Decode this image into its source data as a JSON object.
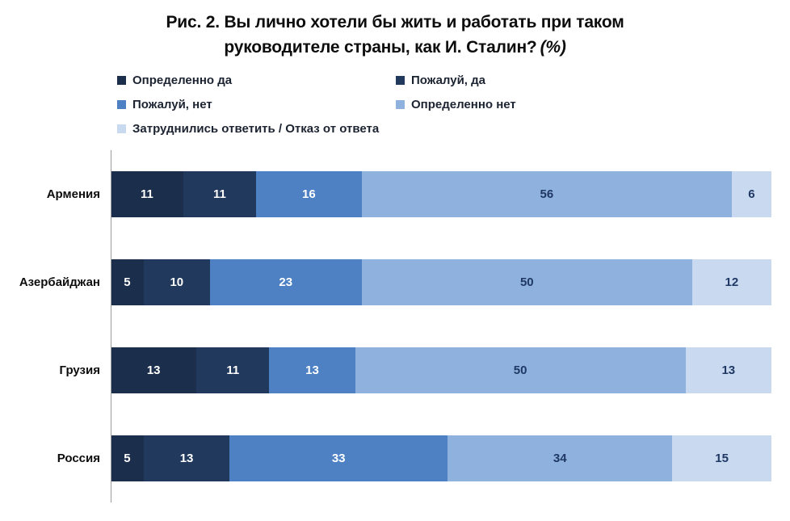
{
  "title": {
    "line1": "Рис. 2. Вы лично хотели бы жить и работать при таком",
    "line2": "руководителе страны, как И. Сталин?",
    "percent_suffix": "(%)"
  },
  "colors": {
    "axis_line": "#9c9c9c",
    "title_text": "#0d0d0d",
    "legend_text": "#1c2331",
    "label_on_dark": "#ffffff",
    "label_on_light": "#1f3864"
  },
  "chart_data": {
    "type": "bar",
    "subtype": "horizontal-stacked-100",
    "categories": [
      "Армения",
      "Азербайджан",
      "Грузия",
      "Россия"
    ],
    "series": [
      {
        "name": "Определенно да",
        "color": "#1b2e4b",
        "label_tone": "dark-bg",
        "values": [
          11,
          5,
          13,
          5
        ]
      },
      {
        "name": "Пожалуй, да",
        "color": "#21395c",
        "label_tone": "dark-bg",
        "values": [
          11,
          10,
          11,
          13
        ]
      },
      {
        "name": "Пожалуй, нет",
        "color": "#4e81c4",
        "label_tone": "dark-bg",
        "values": [
          16,
          23,
          13,
          33
        ]
      },
      {
        "name": "Определенно нет",
        "color": "#8fb1dd",
        "label_tone": "light-bg",
        "values": [
          56,
          50,
          50,
          34
        ]
      },
      {
        "name": "Затруднились ответить / Отказ от ответа",
        "color": "#c9daf0",
        "label_tone": "light-bg",
        "values": [
          6,
          12,
          13,
          15
        ]
      }
    ],
    "xlim": [
      0,
      100
    ],
    "grid": false,
    "legend_position": "top-left-two-columns",
    "value_labels": "inside-center"
  }
}
